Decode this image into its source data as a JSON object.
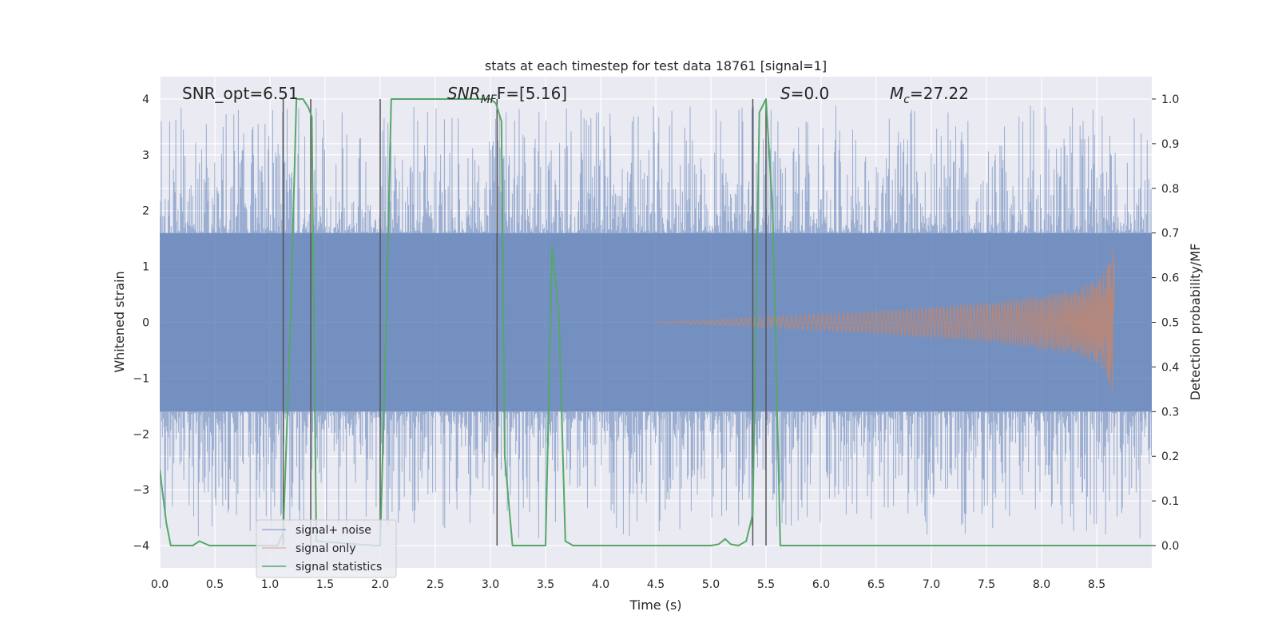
{
  "chart_data": {
    "type": "line",
    "title": "stats at each timestep for test data 18761 [signal=1]",
    "xlabel": "Time (s)",
    "ylabel_left": "Whitened strain",
    "ylabel_right": "Detection probability/MF",
    "xlim": [
      0.0,
      9.0
    ],
    "ylim_left": [
      -4.4,
      4.4
    ],
    "ylim_right": [
      -0.05,
      1.05
    ],
    "xticks": [
      "0.0",
      "0.5",
      "1.0",
      "1.5",
      "2.0",
      "2.5",
      "3.0",
      "3.5",
      "4.0",
      "4.5",
      "5.0",
      "5.5",
      "6.0",
      "6.5",
      "7.0",
      "7.5",
      "8.0",
      "8.5"
    ],
    "yticks_left": [
      "4",
      "3",
      "2",
      "1",
      "0",
      "−1",
      "−2",
      "−3",
      "−4"
    ],
    "yticks_right": [
      "1.0",
      "0.9",
      "0.8",
      "0.7",
      "0.6",
      "0.5",
      "0.4",
      "0.3",
      "0.2",
      "0.1",
      "0.0"
    ],
    "grid": true,
    "legend_position": "lower-left",
    "annotations": {
      "snr_opt": "SNR_opt=6.51",
      "snr_mf_base": "SNR",
      "snr_mf_sub": "MF",
      "snr_mf_rest": "F=[5.16]",
      "s_var": "S",
      "s_rest": "=0.0",
      "mc_var": "M",
      "mc_sub": "c",
      "mc_rest": "=27.22"
    },
    "vertical_markers_s": [
      1.12,
      1.37,
      2.0,
      3.06,
      5.38,
      5.5
    ],
    "series": [
      {
        "name": "signal+ noise",
        "color": "#4c72b0",
        "description_note": "noise",
        "envelope_abs": 1.6,
        "peaks_max": 4.0,
        "peaks_min": -4.0
      },
      {
        "name": "signal only",
        "color": "#dd8452",
        "chirp_end_s": 8.67,
        "chirp_start_s": 4.5,
        "peak_amplitude": 1.6
      },
      {
        "name": "signal statistics",
        "color": "#55a868",
        "x": [
          0.0,
          0.06,
          0.1,
          0.3,
          0.36,
          0.45,
          1.0,
          1.07,
          1.12,
          1.18,
          1.24,
          1.3,
          1.35,
          1.38,
          1.42,
          1.95,
          2.0,
          2.05,
          2.1,
          2.5,
          3.0,
          3.05,
          3.1,
          3.13,
          3.2,
          3.45,
          3.5,
          3.56,
          3.62,
          3.68,
          3.75,
          4.25,
          4.35,
          4.5,
          5.0,
          5.07,
          5.13,
          5.18,
          5.25,
          5.32,
          5.38,
          5.44,
          5.5,
          5.56,
          5.63,
          5.7,
          6.5,
          7.1,
          7.2,
          8.0,
          9.0
        ],
        "y": [
          0.17,
          0.05,
          0.0,
          0.0,
          0.01,
          0.0,
          0.0,
          0.0,
          0.03,
          0.45,
          1.0,
          1.0,
          0.98,
          0.96,
          0.01,
          0.0,
          0.0,
          0.45,
          1.0,
          1.0,
          1.0,
          0.99,
          0.95,
          0.2,
          0.0,
          0.0,
          0.0,
          0.67,
          0.52,
          0.01,
          0.0,
          0.0,
          0.0,
          0.0,
          0.0,
          0.003,
          0.015,
          0.003,
          0.0,
          0.01,
          0.07,
          0.97,
          1.0,
          0.75,
          0.0,
          0.0,
          0.0,
          0.0,
          0.0,
          0.0,
          0.0
        ]
      }
    ]
  }
}
